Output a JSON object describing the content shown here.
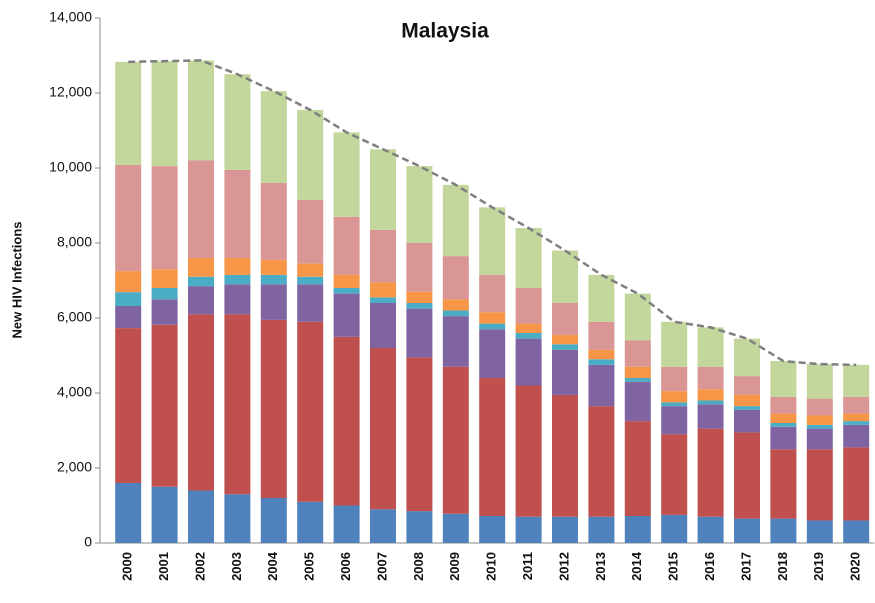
{
  "chart_data": {
    "type": "bar",
    "stacked": true,
    "title": "Malaysia",
    "y_label": "New HIV Infections",
    "categories": [
      "2000",
      "2001",
      "2002",
      "2003",
      "2004",
      "2005",
      "2006",
      "2007",
      "2008",
      "2009",
      "2010",
      "2011",
      "2012",
      "2013",
      "2014",
      "2015",
      "2016",
      "2017",
      "2018",
      "2019",
      "2020"
    ],
    "series": [
      {
        "color": "#4f81bd",
        "values": [
          1600,
          1500,
          1400,
          1300,
          1200,
          1100,
          1000,
          900,
          850,
          780,
          720,
          700,
          700,
          700,
          720,
          750,
          700,
          650,
          650,
          600,
          600
        ]
      },
      {
        "color": "#c0504d",
        "values": [
          4130,
          4320,
          4700,
          4800,
          4750,
          4800,
          4500,
          4300,
          4100,
          3920,
          3680,
          3500,
          3250,
          2950,
          2530,
          2150,
          2350,
          2300,
          1850,
          1900,
          1950
        ]
      },
      {
        "color": "#8064a2",
        "values": [
          590,
          680,
          750,
          800,
          950,
          1000,
          1150,
          1200,
          1300,
          1350,
          1300,
          1250,
          1200,
          1100,
          1050,
          750,
          650,
          600,
          600,
          550,
          600
        ]
      },
      {
        "color": "#4bacc6",
        "values": [
          370,
          300,
          250,
          250,
          250,
          200,
          150,
          150,
          150,
          150,
          150,
          150,
          150,
          150,
          100,
          100,
          100,
          100,
          100,
          100,
          100
        ]
      },
      {
        "color": "#f79646",
        "values": [
          560,
          500,
          500,
          450,
          400,
          350,
          350,
          400,
          300,
          300,
          300,
          250,
          250,
          250,
          300,
          300,
          300,
          300,
          250,
          250,
          200
        ]
      },
      {
        "color": "#d99694",
        "values": [
          2830,
          2750,
          2600,
          2350,
          2050,
          1700,
          1550,
          1400,
          1300,
          1150,
          1000,
          950,
          850,
          750,
          700,
          650,
          600,
          500,
          450,
          450,
          450
        ]
      },
      {
        "color": "#c3d69b",
        "values": [
          2750,
          2800,
          2670,
          2550,
          2450,
          2400,
          2250,
          2150,
          2050,
          1900,
          1800,
          1600,
          1400,
          1250,
          1250,
          1200,
          1050,
          1000,
          950,
          920,
          850
        ]
      }
    ],
    "line": {
      "type": "line",
      "color": "#7f7f7f",
      "dashed": true,
      "values": [
        12830,
        12850,
        12870,
        12500,
        12050,
        11550,
        10950,
        10500,
        10050,
        9550,
        8950,
        8400,
        7800,
        7150,
        6650,
        5900,
        5750,
        5450,
        4850,
        4770,
        4750
      ]
    },
    "ylim": [
      0,
      14000
    ],
    "yticks": [
      0,
      {
        "value": 2000,
        "label": "2,000"
      },
      {
        "value": 4000,
        "label": "4,000"
      },
      {
        "value": 6000,
        "label": "6,000"
      },
      {
        "value": 8000,
        "label": "8,000"
      },
      {
        "value": 10000,
        "label": "10,000"
      },
      {
        "value": 12000,
        "label": "12,000"
      },
      {
        "value": 14000,
        "label": "14,000"
      }
    ],
    "grid": false
  }
}
